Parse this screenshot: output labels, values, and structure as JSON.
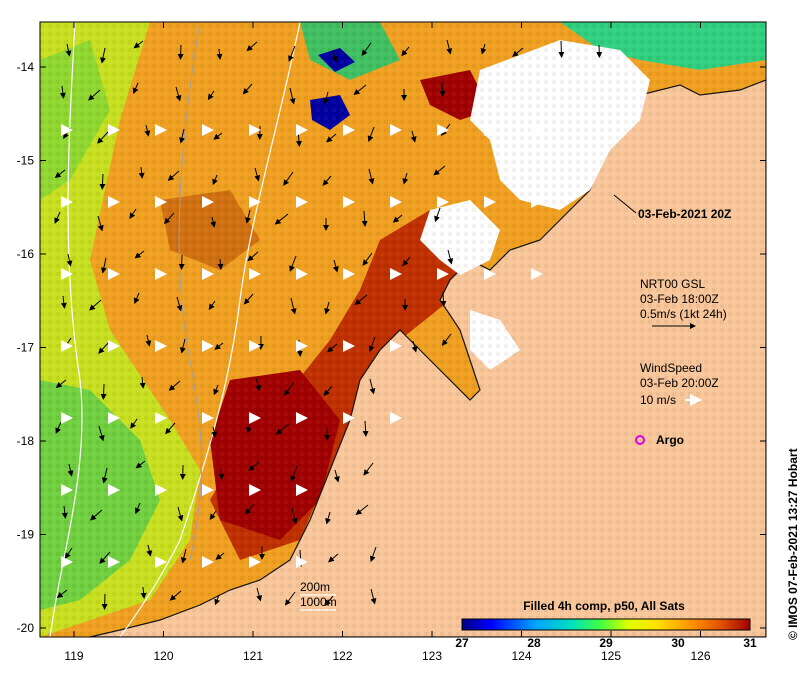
{
  "map": {
    "title_label": "03-Feb-2021 20Z",
    "lat_ticks": [
      "-14",
      "-15",
      "-16",
      "-17",
      "-18",
      "-19",
      "-20"
    ],
    "lon_ticks": [
      "119",
      "120",
      "121",
      "122",
      "123",
      "124",
      "125",
      "126"
    ],
    "colors": {
      "land": "#f9c69a",
      "cloud": "#ffffff",
      "coast": "#111111",
      "isobath": "#ffffff",
      "isobath_deep": "#a0a0a0",
      "argo": "#e000e0"
    }
  },
  "legend": {
    "currents": {
      "line1": "NRT00 GSL",
      "line2": "03-Feb 18:00Z",
      "line3": "0.5m/s (1kt 24h)"
    },
    "wind": {
      "line1": "WindSpeed",
      "line2": "03-Feb 20:00Z",
      "line3": "10 m/s"
    },
    "argo": {
      "label": "Argo"
    },
    "isobaths": {
      "label1": "200m",
      "label2": "1000m"
    }
  },
  "colorbar": {
    "title": "Filled 4h comp, p50, All Sats",
    "ticks": [
      "27",
      "28",
      "29",
      "30",
      "31"
    ],
    "stops": [
      "#00007f",
      "#0000ff",
      "#00a0ff",
      "#00e0c0",
      "#40ff40",
      "#e0ff00",
      "#ffe000",
      "#ff9000",
      "#e05000",
      "#a00000"
    ]
  },
  "credit": {
    "text": "© IMOS 07-Feb-2021 13:27 Hobart"
  }
}
